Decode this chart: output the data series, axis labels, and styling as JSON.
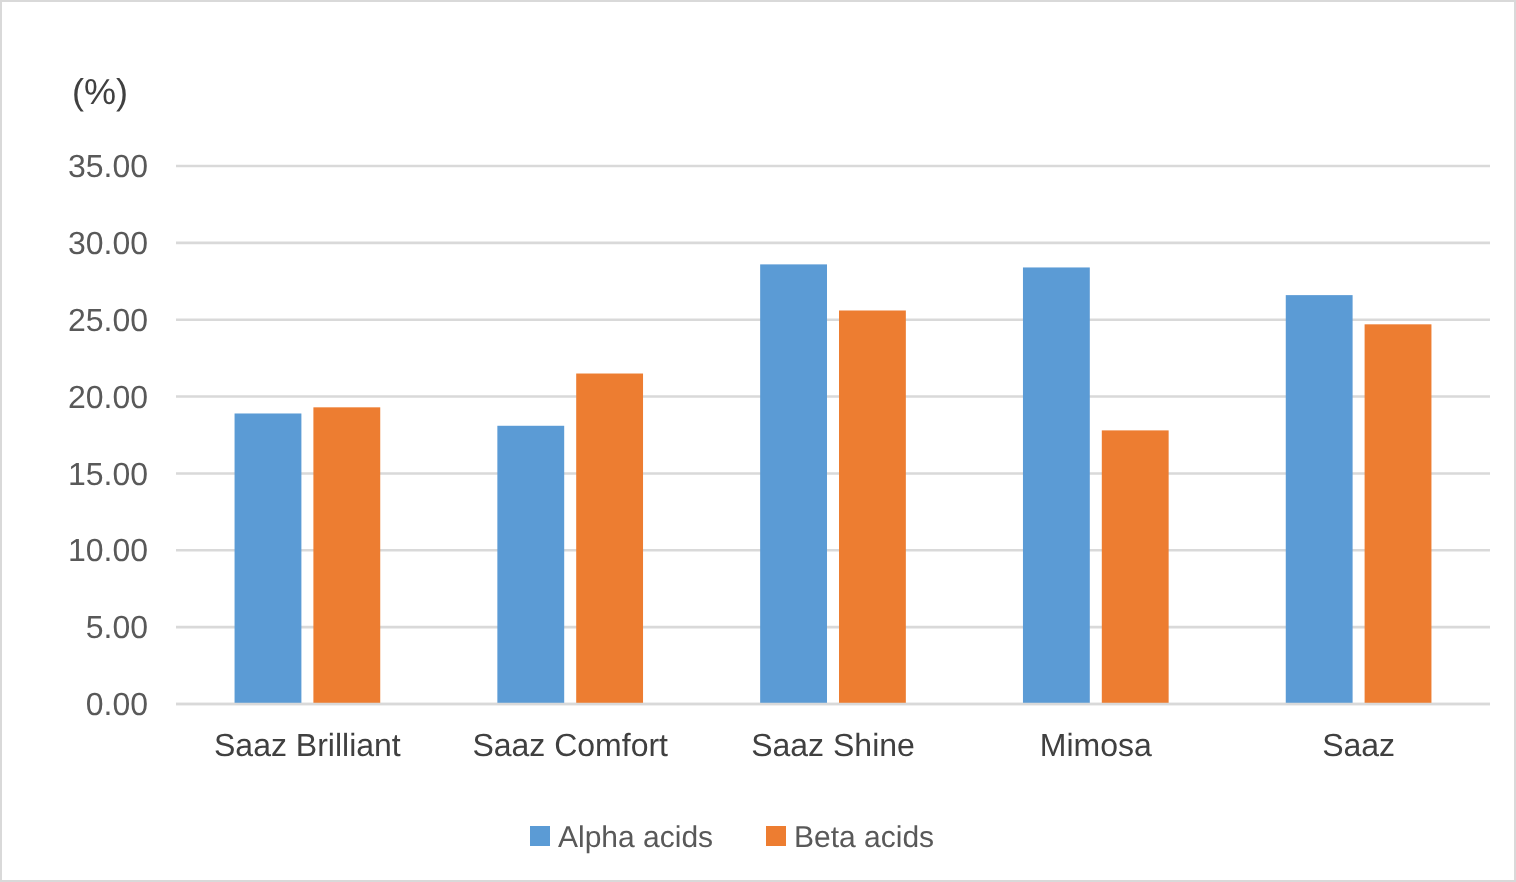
{
  "chart_data": {
    "type": "bar",
    "ylabel": "(%)",
    "categories": [
      "Saaz Brilliant",
      "Saaz Comfort",
      "Saaz Shine",
      "Mimosa",
      "Saaz"
    ],
    "series": [
      {
        "name": "Alpha acids",
        "color": "#5b9bd5",
        "values": [
          18.9,
          18.1,
          28.6,
          28.4,
          26.6
        ]
      },
      {
        "name": "Beta acids",
        "color": "#ed7d31",
        "values": [
          19.3,
          21.5,
          25.6,
          17.8,
          24.7
        ]
      }
    ],
    "ylim": [
      0,
      35
    ],
    "yticks": [
      {
        "value": 0,
        "label": "0.00"
      },
      {
        "value": 5,
        "label": "5.00"
      },
      {
        "value": 10,
        "label": "10.00"
      },
      {
        "value": 15,
        "label": "15.00"
      },
      {
        "value": 20,
        "label": "20.00"
      },
      {
        "value": 25,
        "label": "25.00"
      },
      {
        "value": 30,
        "label": "30.00"
      },
      {
        "value": 35,
        "label": "35.00"
      }
    ],
    "grid": "y",
    "legend": "bottom"
  }
}
